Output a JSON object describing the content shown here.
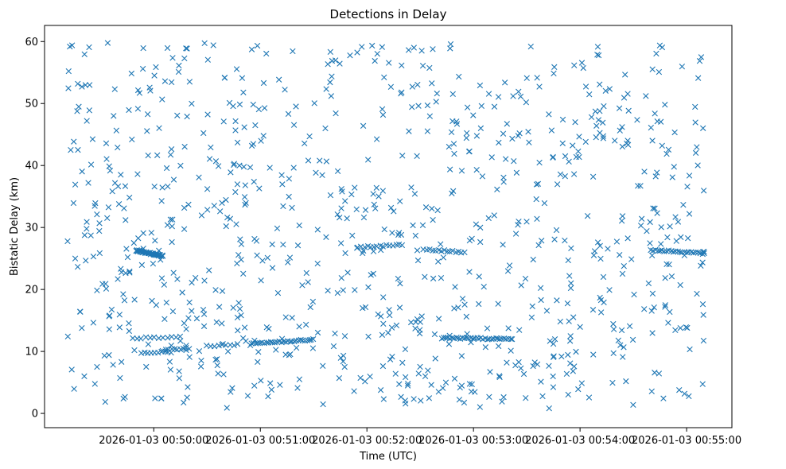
{
  "chart_data": {
    "type": "scatter",
    "title": "Detections in Delay",
    "xlabel": "Time (UTC)",
    "ylabel": "Bistatic Delay (km)",
    "marker": "x",
    "color": "#1f77b4",
    "xlim_seconds": [
      -61.5,
      325.5
    ],
    "ylim": [
      -2.3,
      62.6
    ],
    "x_ticks": [
      {
        "seconds": 0,
        "label": "2026-01-03 00:50:00"
      },
      {
        "seconds": 60,
        "label": "2026-01-03 00:51:00"
      },
      {
        "seconds": 120,
        "label": "2026-01-03 00:52:00"
      },
      {
        "seconds": 180,
        "label": "2026-01-03 00:53:00"
      },
      {
        "seconds": 240,
        "label": "2026-01-03 00:54:00"
      },
      {
        "seconds": 300,
        "label": "2026-01-03 00:55:00"
      }
    ],
    "y_ticks": [
      0,
      10,
      20,
      30,
      40,
      50,
      60
    ],
    "x_data_range_seconds": [
      -49,
      310
    ],
    "random_points_count": 900,
    "tracks": [
      {
        "t_start": -10,
        "t_end": 5,
        "delay_start": 26.3,
        "delay_end": 25.4,
        "count": 40
      },
      {
        "t_start": -12,
        "t_end": 15,
        "delay_start": 12.1,
        "delay_end": 12.4,
        "count": 12
      },
      {
        "t_start": -7,
        "t_end": 10,
        "delay_start": 9.8,
        "delay_end": 9.9,
        "count": 10
      },
      {
        "t_start": 5,
        "t_end": 20,
        "delay_start": 10.2,
        "delay_end": 10.5,
        "count": 10
      },
      {
        "t_start": 30,
        "t_end": 45,
        "delay_start": 10.9,
        "delay_end": 11.0,
        "count": 8
      },
      {
        "t_start": 55,
        "t_end": 90,
        "delay_start": 11.2,
        "delay_end": 11.9,
        "count": 30
      },
      {
        "t_start": 115,
        "t_end": 140,
        "delay_start": 26.8,
        "delay_end": 27.2,
        "count": 15
      },
      {
        "t_start": 152,
        "t_end": 175,
        "delay_start": 26.5,
        "delay_end": 26.0,
        "count": 15
      },
      {
        "t_start": 162,
        "t_end": 202,
        "delay_start": 12.2,
        "delay_end": 12.0,
        "count": 35
      },
      {
        "t_start": 280,
        "t_end": 310,
        "delay_start": 26.4,
        "delay_end": 25.8,
        "count": 25
      }
    ]
  }
}
